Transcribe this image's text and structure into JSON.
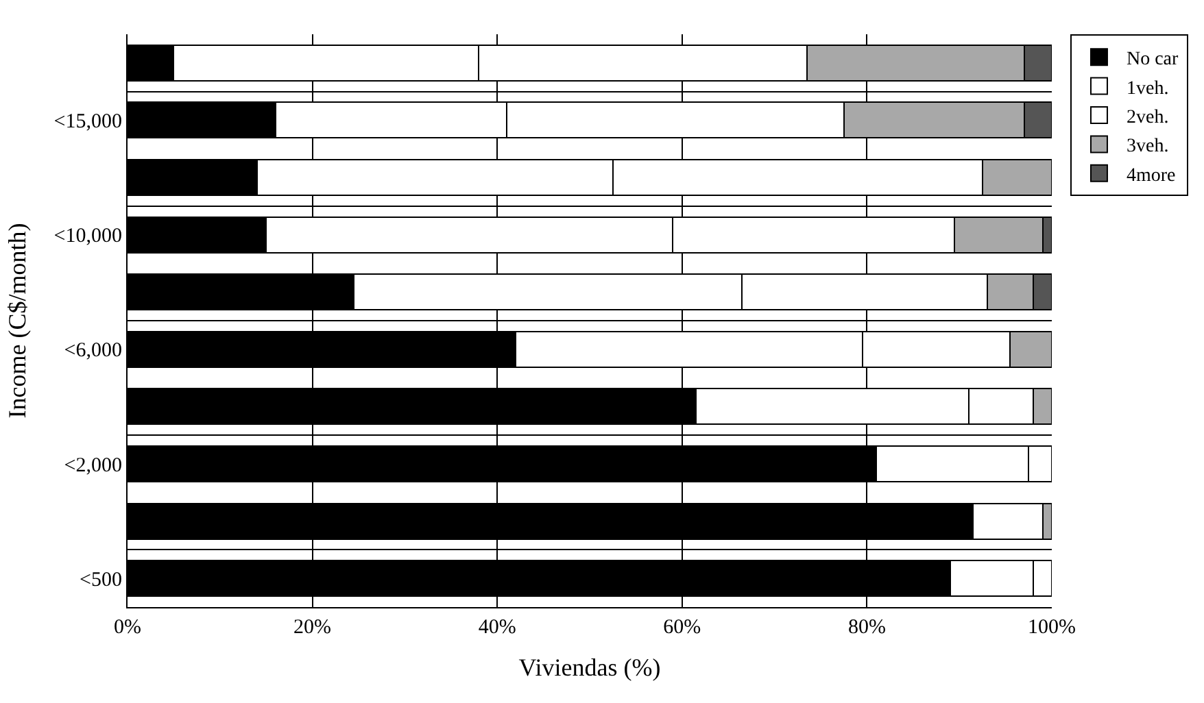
{
  "chart_data": {
    "type": "bar",
    "orientation": "horizontal",
    "stacked": true,
    "xlabel": "Viviendas (%)",
    "ylabel": "Income (C$/month)",
    "categories": [
      null,
      "<15,000",
      null,
      "<10,000",
      null,
      "<6,000",
      null,
      "<2,000",
      null,
      "<500"
    ],
    "series": [
      {
        "name": "No car",
        "color": "#000000",
        "values": [
          5,
          16,
          14,
          15,
          24.5,
          42,
          61.5,
          81,
          91.5,
          89
        ]
      },
      {
        "name": "1veh.",
        "color": "#ffffff",
        "values": [
          33,
          25,
          38.5,
          44,
          42,
          37.5,
          29.5,
          16.5,
          7.5,
          9
        ]
      },
      {
        "name": "2veh.",
        "color": "#ffffff",
        "values": [
          35.5,
          36.5,
          40,
          30.5,
          26.5,
          16,
          7,
          2.5,
          0,
          2
        ]
      },
      {
        "name": "3veh.",
        "color": "#a8a8a8",
        "values": [
          23.5,
          19.5,
          7.5,
          9.5,
          5,
          4.5,
          2,
          0,
          1,
          0
        ]
      },
      {
        "name": "4more",
        "color": "#555555",
        "values": [
          3,
          3,
          0,
          1,
          2,
          0,
          0,
          0,
          0,
          0
        ]
      }
    ],
    "xlim": [
      0,
      100
    ],
    "xticks": [
      {
        "value": 0,
        "label": "0%"
      },
      {
        "value": 20,
        "label": "20%"
      },
      {
        "value": 40,
        "label": "40%"
      },
      {
        "value": 60,
        "label": "60%"
      },
      {
        "value": 80,
        "label": "80%"
      },
      {
        "value": 100,
        "label": "100%"
      }
    ],
    "grid": true,
    "legend": "top right"
  }
}
